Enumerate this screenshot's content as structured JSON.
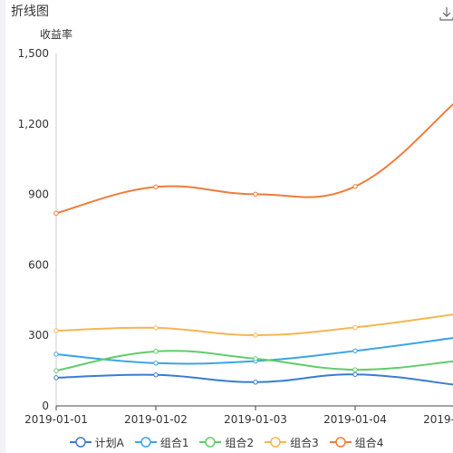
{
  "panel": {
    "title": "折线图",
    "download_icon": "download-icon"
  },
  "chart_data": {
    "type": "line",
    "smooth": true,
    "title": "",
    "ylabel": "收益率",
    "xlabel": "",
    "categories": [
      "2019-01-01",
      "2019-01-02",
      "2019-01-03",
      "2019-01-04",
      "2019-01-05"
    ],
    "ylim": [
      0,
      1500
    ],
    "yticks": [
      0,
      300,
      600,
      900,
      1200,
      1500
    ],
    "ytick_labels": [
      "0",
      "300",
      "600",
      "900",
      "1,200",
      "1,500"
    ],
    "grid": false,
    "legend_position": "bottom",
    "series": [
      {
        "name": "计划A",
        "color": "#3a7bd5",
        "values": [
          120,
          132,
          101,
          134,
          90
        ]
      },
      {
        "name": "组合1",
        "color": "#3ba5e6",
        "values": [
          220,
          182,
          191,
          234,
          290
        ]
      },
      {
        "name": "组合2",
        "color": "#5fcd6a",
        "values": [
          150,
          232,
          201,
          154,
          190
        ]
      },
      {
        "name": "组合3",
        "color": "#f7b553",
        "values": [
          320,
          332,
          301,
          334,
          390
        ]
      },
      {
        "name": "组合4",
        "color": "#f07c3a",
        "values": [
          820,
          932,
          901,
          934,
          1290
        ]
      }
    ]
  }
}
